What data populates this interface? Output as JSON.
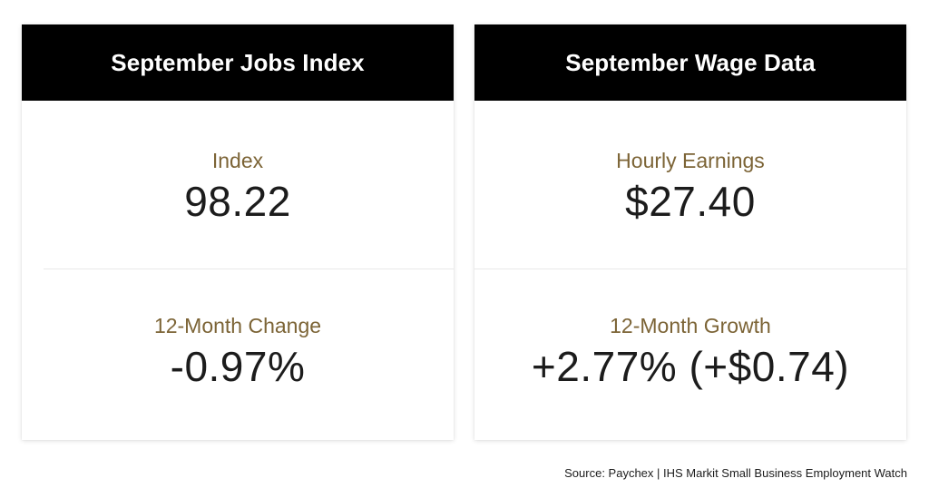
{
  "cards": [
    {
      "title": "September Jobs Index",
      "stats": [
        {
          "label": "Index",
          "value": "98.22"
        },
        {
          "label": "12-Month Change",
          "value": "-0.97%"
        }
      ]
    },
    {
      "title": "September Wage Data",
      "stats": [
        {
          "label": "Hourly Earnings",
          "value": "$27.40"
        },
        {
          "label": "12-Month Growth",
          "value": "+2.77% (+$0.74)"
        }
      ]
    }
  ],
  "source": "Source: Paychex | IHS Markit Small Business Employment Watch",
  "colors": {
    "header_bg": "#000000",
    "header_text": "#ffffff",
    "label": "#7c6436",
    "value": "#1c1c1c"
  }
}
